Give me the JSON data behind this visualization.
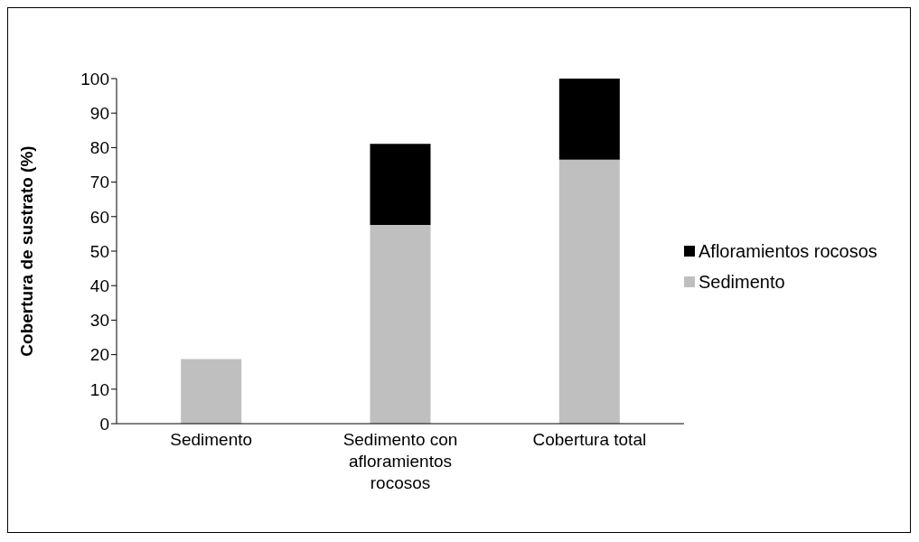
{
  "chart_data": {
    "type": "bar",
    "stacked": true,
    "ylabel": "Cobertura de sustrato (%)",
    "categories": [
      "Sedimento",
      "Sedimento con afloramientos rocosos",
      "Cobertura total"
    ],
    "series": [
      {
        "name": "Sedimento",
        "color": "#bfbfbf",
        "values": [
          18.7,
          57.6,
          76.5
        ]
      },
      {
        "name": "Afloramientos rocosos",
        "color": "#000000",
        "values": [
          0,
          23.5,
          23.5
        ]
      }
    ],
    "ylim": [
      0,
      100
    ],
    "yticks": [
      0,
      10,
      20,
      30,
      40,
      50,
      60,
      70,
      80,
      90,
      100
    ],
    "grid": false,
    "legend": "right"
  }
}
